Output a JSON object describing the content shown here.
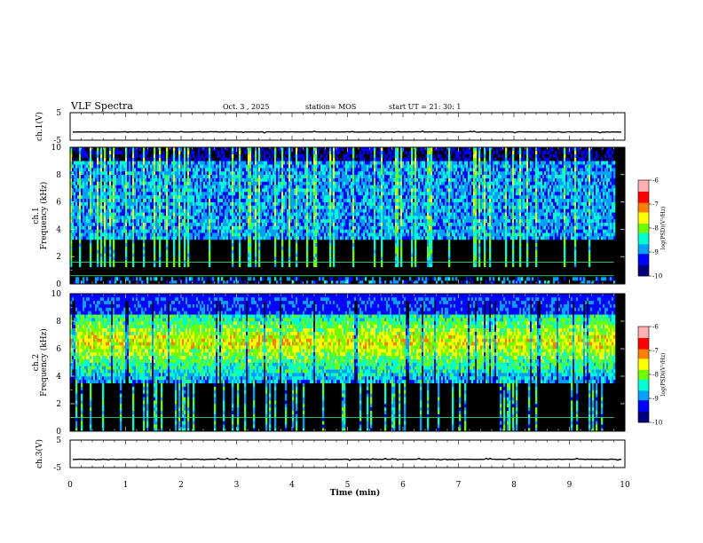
{
  "header": {
    "title": "VLF Spectra",
    "date": "Oct. 3 , 2025",
    "station": "station= MOS",
    "start": "start UT = 21: 30: 1"
  },
  "colors": {
    "background": "#000000",
    "waveform": "#000000",
    "colormap": [
      "#00007f",
      "#0000ff",
      "#00a0ff",
      "#00ffd0",
      "#70ff00",
      "#ffff00",
      "#ff8000",
      "#ff0000",
      "#ffb0b0",
      "#ffffff"
    ]
  },
  "chart_data": [
    {
      "type": "line",
      "name": "ch1-waveform",
      "ylabel": "ch.1(V)",
      "ylim": [
        -5,
        5
      ],
      "yticks": [
        "5",
        "-5"
      ],
      "xlim": [
        0,
        10
      ],
      "level": -2.0
    },
    {
      "type": "heatmap",
      "name": "ch1-spectrogram",
      "ylabel": "ch.1\nFrequency (kHz)",
      "ylim": [
        0,
        10
      ],
      "yticks": [
        "0",
        "2",
        "4",
        "6",
        "8",
        "10"
      ],
      "xlim": [
        0,
        9.8
      ],
      "colorbar": {
        "label": "log(PSD)(V²/Hz)",
        "range": [
          -10,
          -6
        ],
        "ticks": [
          "-6",
          "-7",
          "-8",
          "-9",
          "-10"
        ]
      },
      "band_khz": [
        3.2,
        9.0
      ],
      "lines_khz": [
        0.6,
        1.6
      ]
    },
    {
      "type": "heatmap",
      "name": "ch2-spectrogram",
      "ylabel": "ch.2\nFrequency (kHz)",
      "ylim": [
        0,
        10
      ],
      "yticks": [
        "0",
        "2",
        "4",
        "6",
        "8",
        "10"
      ],
      "xlim": [
        0,
        9.8
      ],
      "colorbar": {
        "label": "log(PSD)(V²/Hz)",
        "range": [
          -10,
          -6
        ],
        "ticks": [
          "-6",
          "-7",
          "-8",
          "-9",
          "-10"
        ]
      },
      "band_khz": [
        3.5,
        9.5
      ],
      "peak_khz": 6.5,
      "lines_khz": [
        1.0
      ]
    },
    {
      "type": "line",
      "name": "ch3-waveform",
      "ylabel": "ch.3(V)",
      "ylim": [
        -5,
        5
      ],
      "yticks": [
        "5",
        "-5"
      ],
      "xlim": [
        0,
        10
      ],
      "level": -2.0
    }
  ],
  "xaxis": {
    "label": "Time (min)",
    "ticks": [
      "0",
      "1",
      "2",
      "3",
      "4",
      "5",
      "6",
      "7",
      "8",
      "9",
      "10"
    ],
    "range": [
      0,
      10
    ]
  }
}
